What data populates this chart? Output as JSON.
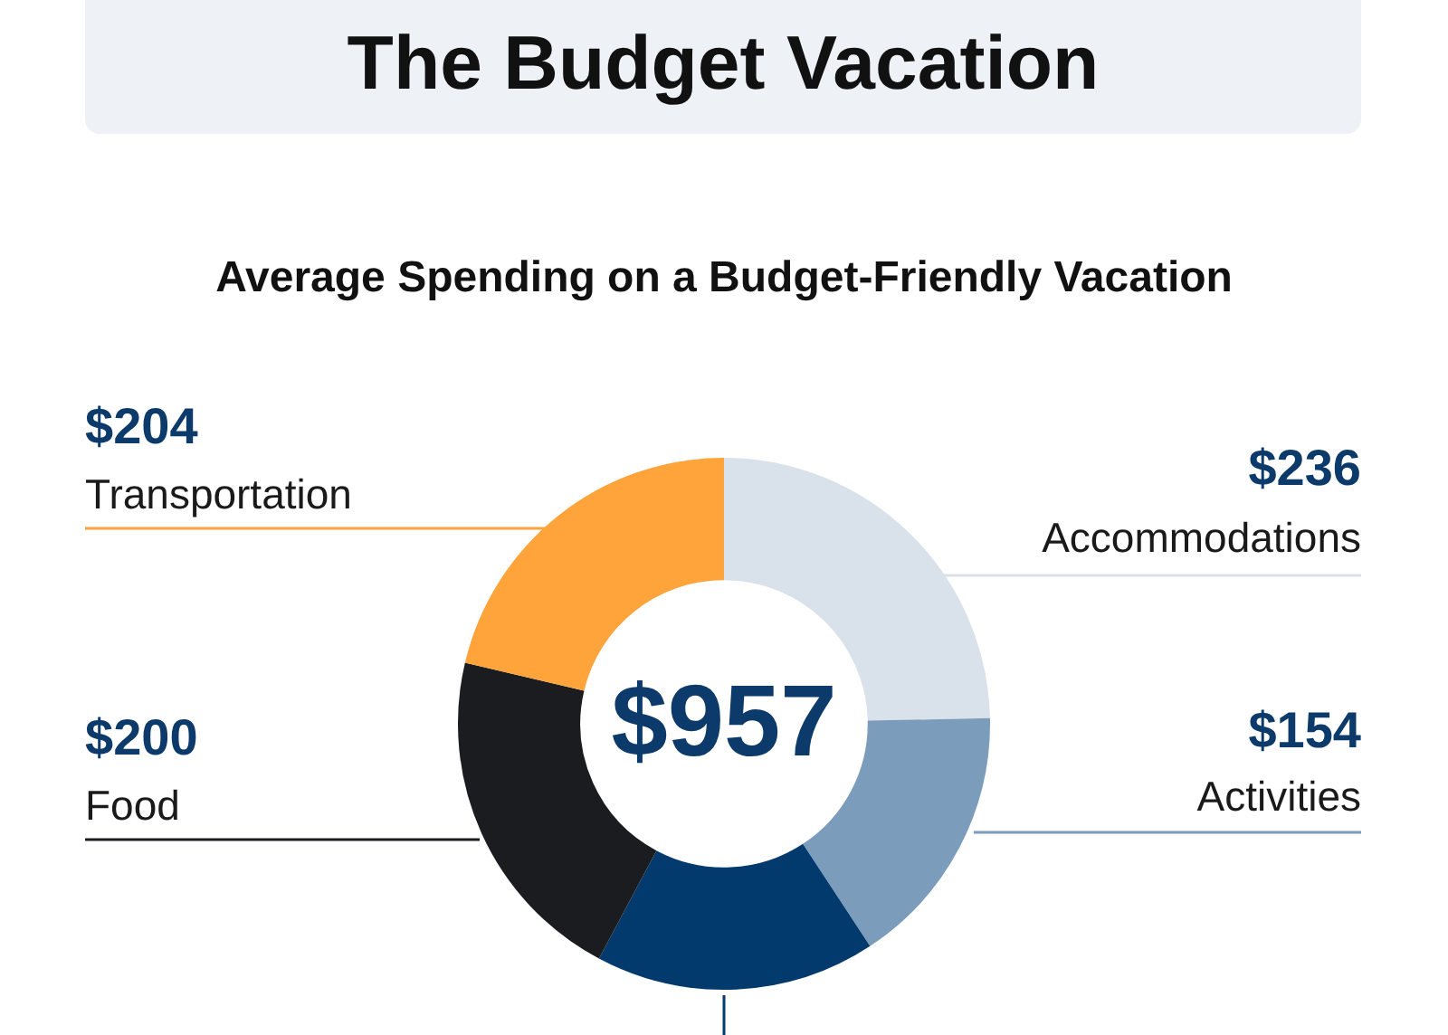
{
  "chart_data": {
    "type": "donut",
    "title": "The Budget Vacation",
    "subtitle": "Average Spending on a Budget-Friendly Vacation",
    "categories": [
      "Accommodations",
      "Activities",
      null,
      "Food",
      "Transportation"
    ],
    "values": [
      236,
      154,
      163,
      200,
      204
    ],
    "value_labels": [
      "$236",
      "$154",
      null,
      "$200",
      "$204"
    ],
    "colors": [
      "#d9e1ea",
      "#7b9cba",
      "#023a6e",
      "#1b1c20",
      "#ffa43a"
    ],
    "annotations": [
      "$957"
    ],
    "legend": false
  }
}
